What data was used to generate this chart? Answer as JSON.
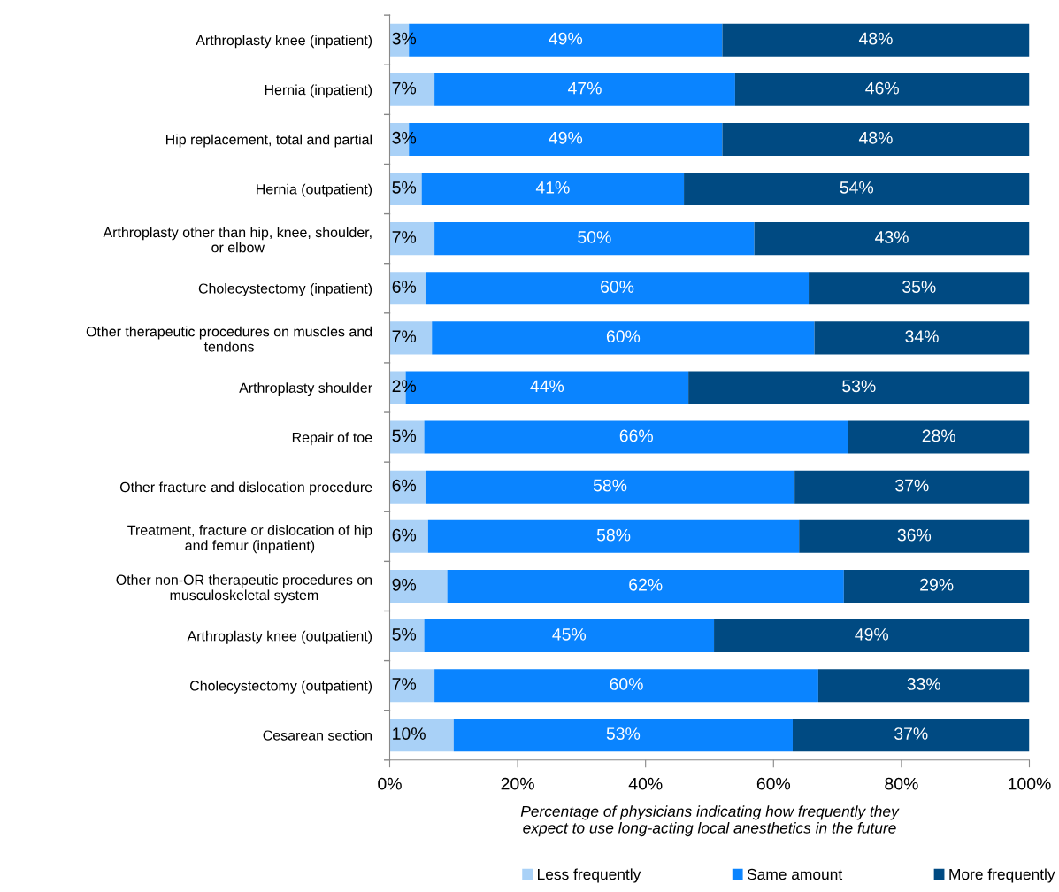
{
  "chart_data": {
    "type": "bar",
    "orientation": "horizontal",
    "stacked": true,
    "categories": [
      "Arthroplasty knee (inpatient)",
      "Hernia (inpatient)",
      "Hip replacement, total and partial",
      "Hernia (outpatient)",
      "Arthroplasty other than hip, knee, shoulder, or elbow",
      "Cholecystectomy (inpatient)",
      "Other therapeutic procedures on muscles and tendons",
      "Arthroplasty shoulder",
      "Repair of toe",
      "Other fracture and dislocation procedure",
      "Treatment, fracture or dislocation of hip and femur (inpatient)",
      "Other non-OR therapeutic procedures on musculoskeletal system",
      "Arthroplasty knee (outpatient)",
      "Cholecystectomy (outpatient)",
      "Cesarean section"
    ],
    "series": [
      {
        "name": "Less frequently",
        "color": "#a9d1f7",
        "values": [
          3,
          7,
          3,
          5,
          7,
          5.6,
          6.6,
          2.5,
          5.4,
          5.6,
          6,
          9,
          5.4,
          7,
          10
        ],
        "value_labels": [
          "3%",
          "7%",
          "3%",
          "5%",
          "7%",
          "6%",
          "7%",
          "2%",
          "5%",
          "6%",
          "6%",
          "9%",
          "5%",
          "7%",
          "10%"
        ]
      },
      {
        "name": "Same amount",
        "color": "#0a84ff",
        "values": [
          49,
          47,
          49,
          41,
          50,
          59.9,
          59.8,
          44.2,
          66.3,
          57.7,
          58,
          62,
          45.3,
          60,
          53
        ],
        "value_labels": [
          "49%",
          "47%",
          "49%",
          "41%",
          "50%",
          "60%",
          "60%",
          "44%",
          "66%",
          "58%",
          "58%",
          "62%",
          "45%",
          "60%",
          "53%"
        ]
      },
      {
        "name": "More frequently",
        "color": "#004a82",
        "values": [
          48,
          46,
          48,
          54,
          43,
          34.5,
          33.6,
          53.3,
          28.3,
          36.7,
          36,
          29,
          49.3,
          33,
          37
        ],
        "value_labels": [
          "48%",
          "46%",
          "48%",
          "54%",
          "43%",
          "35%",
          "34%",
          "53%",
          "28%",
          "37%",
          "36%",
          "29%",
          "49%",
          "33%",
          "37%"
        ]
      }
    ],
    "xlim": [
      0,
      100
    ],
    "xticks": [
      {
        "value": 0,
        "label": "0%"
      },
      {
        "value": 20,
        "label": "20%"
      },
      {
        "value": 40,
        "label": "40%"
      },
      {
        "value": 60,
        "label": "60%"
      },
      {
        "value": 80,
        "label": "80%"
      },
      {
        "value": 100,
        "label": "100%"
      }
    ],
    "xlabel": "Percentage of physicians indicating how frequently they expect to use long-acting local anesthetics in the future",
    "grid": false,
    "legend": "bottom"
  }
}
